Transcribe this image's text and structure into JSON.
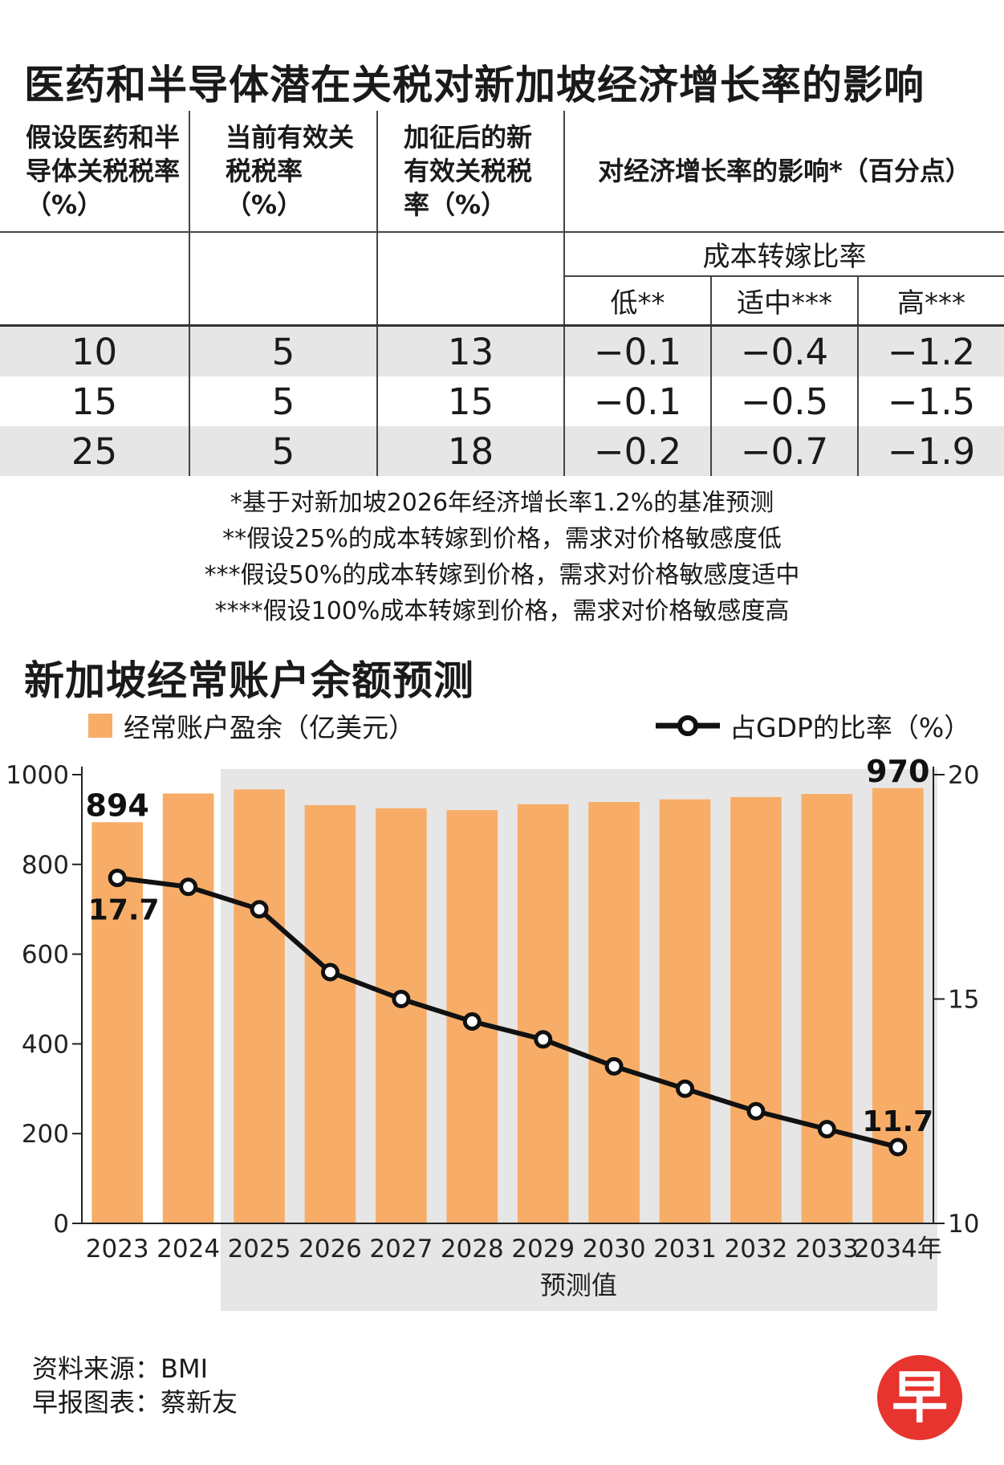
{
  "titles": {
    "table": "医药和半导体潜在关税对新加坡经济增长率的影响",
    "chart": "新加坡经常账户余额预测"
  },
  "table": {
    "headers": {
      "h1": "假设医药和半导体关税税率（%）",
      "h2": "当前有效关税税率（%）",
      "h3": "加征后的新有效关税税率（%）",
      "h4": "对经济增长率的影响*（百分点）",
      "group": "成本转嫁比率",
      "low": "低**",
      "mid": "适中***",
      "high": "高***"
    },
    "rows": [
      {
        "tariff": "10",
        "current": "5",
        "new": "13",
        "low": "−0.1",
        "mid": "−0.4",
        "high": "−1.2"
      },
      {
        "tariff": "15",
        "current": "5",
        "new": "15",
        "low": "−0.1",
        "mid": "−0.5",
        "high": "−1.5"
      },
      {
        "tariff": "25",
        "current": "5",
        "new": "18",
        "low": "−0.2",
        "mid": "−0.7",
        "high": "−1.9"
      }
    ],
    "notes": [
      "*基于对新加坡2026年经济增长率1.2%的基准预测",
      "**假设25%的成本转嫁到价格，需求对价格敏感度低",
      "***假设50%的成本转嫁到价格，需求对价格敏感度适中",
      "****假设100%成本转嫁到价格，需求对价格敏感度高"
    ]
  },
  "chart_data": {
    "type": "bar",
    "title": "新加坡经常账户余额预测",
    "categories": [
      "2023",
      "2024",
      "2025",
      "2026",
      "2027",
      "2028",
      "2029",
      "2030",
      "2031",
      "2032",
      "2033",
      "2034年"
    ],
    "series": [
      {
        "name": "经常账户盈余（亿美元）",
        "type": "bar",
        "axis": "left",
        "values": [
          894,
          958,
          967,
          932,
          925,
          921,
          934,
          939,
          945,
          950,
          957,
          970
        ]
      },
      {
        "name": "占GDP的比率（%）",
        "type": "line",
        "axis": "right",
        "values": [
          17.7,
          17.5,
          17.0,
          15.6,
          15.0,
          14.5,
          14.1,
          13.5,
          13.0,
          12.5,
          12.1,
          11.7
        ]
      }
    ],
    "yleft": {
      "min": 0,
      "max": 1000,
      "ticks": [
        "0",
        "200",
        "400",
        "600",
        "800",
        "1000"
      ]
    },
    "yright": {
      "min": 10,
      "max": 20,
      "ticks": [
        "10",
        "15",
        "20"
      ]
    },
    "labels": {
      "first_bar": "894",
      "last_bar": "970",
      "first_line": "17.7",
      "last_line": "11.7"
    },
    "forecast_label": "预测值",
    "colors": {
      "bar": "#f7ad68",
      "line": "#111111",
      "forecast_bg": "#e6e6e6"
    }
  },
  "footer": {
    "source": "资料来源：BMI",
    "credit": "早报图表：蔡新友",
    "logo": "早"
  }
}
